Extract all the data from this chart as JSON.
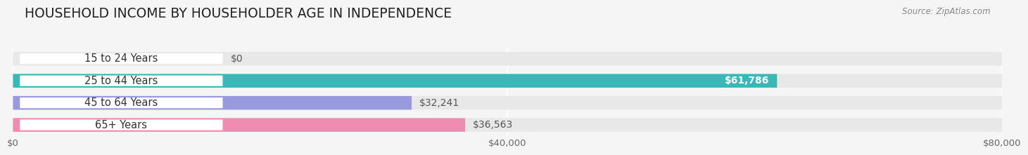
{
  "title": "HOUSEHOLD INCOME BY HOUSEHOLDER AGE IN INDEPENDENCE",
  "source": "Source: ZipAtlas.com",
  "categories": [
    "15 to 24 Years",
    "25 to 44 Years",
    "45 to 64 Years",
    "65+ Years"
  ],
  "values": [
    0,
    61786,
    32241,
    36563
  ],
  "bar_colors": [
    "#c9a8d4",
    "#3ab8b8",
    "#9999dd",
    "#f08cb0"
  ],
  "xlim": [
    0,
    80000
  ],
  "xticks": [
    0,
    40000,
    80000
  ],
  "xtick_labels": [
    "$0",
    "$40,000",
    "$80,000"
  ],
  "value_labels": [
    "$0",
    "$61,786",
    "$32,241",
    "$36,563"
  ],
  "value_label_colors": [
    "#555555",
    "#ffffff",
    "#555555",
    "#555555"
  ],
  "value_label_inside": [
    false,
    true,
    false,
    false
  ],
  "background_color": "#f5f5f5",
  "bar_background_color": "#e8e8e8",
  "bar_height": 0.62,
  "title_fontsize": 13.5,
  "label_fontsize": 10.5,
  "value_fontsize": 10,
  "tick_fontsize": 9.5
}
